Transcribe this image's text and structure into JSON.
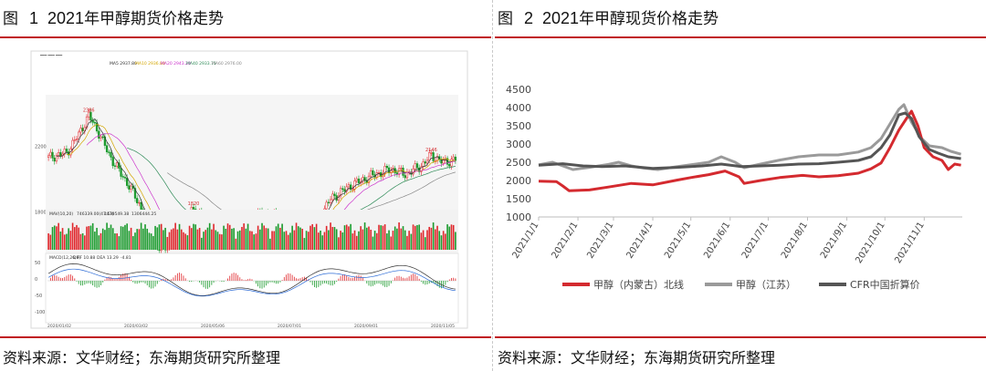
{
  "figure1": {
    "label": "图",
    "number": "1",
    "year": "2021",
    "title": "年甲醇期货价格走势",
    "source": "资料来源：文华财经；东海期货研究所整理",
    "chart_data": {
      "type": "candlestick",
      "header_ma": [
        "MA5 2937.80",
        "MA10 2936.80",
        "MA20 2943.20",
        "MA40 2933.75",
        "MA60 2976.00"
      ],
      "price_annotations": [
        "2386",
        "1931",
        "1820",
        "1671",
        "2146"
      ],
      "y_ticks": [
        "2200",
        "1800"
      ],
      "volume_header": [
        "MAV(10,20)",
        "746339.00(47:53)",
        "1470549.38",
        "1306444.25"
      ],
      "macd_header": [
        "MACD(12,26,9)",
        "DIFF 10.88",
        "DEA 13.29",
        "-4.81"
      ],
      "macd_ticks": [
        "50",
        "0",
        "-50",
        "-100"
      ],
      "x_ticks": [
        "2020/01/02",
        "2020/03/02",
        "2020/05/06",
        "2020/07/01",
        "2020/09/01",
        "2020/11/05"
      ]
    }
  },
  "figure2": {
    "label": "图",
    "number": "2",
    "year": "2021",
    "title": "年甲醇现货价格走势",
    "source": "资料来源：文华财经；东海期货研究所整理",
    "chart_data": {
      "type": "line",
      "ylim": [
        1000,
        4500
      ],
      "y_ticks": [
        1000,
        1500,
        2000,
        2500,
        3000,
        3500,
        4000,
        4500
      ],
      "x_ticks": [
        "2021/1/1",
        "2021/2/1",
        "2021/3/1",
        "2021/4/1",
        "2021/5/1",
        "2021/6/1",
        "2021/7/1",
        "2021/8/1",
        "2021/9/1",
        "2021/10/1",
        "2021/11/1"
      ],
      "grid": false,
      "legend_position": "bottom",
      "series": [
        {
          "name": "甲醇（内蒙古）北线",
          "color": "#d42a2f",
          "points": [
            [
              "2021/1/1",
              1980
            ],
            [
              "2021/1/15",
              1970
            ],
            [
              "2021/1/20",
              1850
            ],
            [
              "2021/1/25",
              1720
            ],
            [
              "2021/2/10",
              1740
            ],
            [
              "2021/2/25",
              1820
            ],
            [
              "2021/3/15",
              1920
            ],
            [
              "2021/4/1",
              1880
            ],
            [
              "2021/4/20",
              2010
            ],
            [
              "2021/5/1",
              2080
            ],
            [
              "2021/5/15",
              2160
            ],
            [
              "2021/5/28",
              2260
            ],
            [
              "2021/6/8",
              2100
            ],
            [
              "2021/6/12",
              1920
            ],
            [
              "2021/6/25",
              2000
            ],
            [
              "2021/7/10",
              2080
            ],
            [
              "2021/7/28",
              2140
            ],
            [
              "2021/8/10",
              2100
            ],
            [
              "2021/8/25",
              2130
            ],
            [
              "2021/9/10",
              2200
            ],
            [
              "2021/9/20",
              2320
            ],
            [
              "2021/9/28",
              2480
            ],
            [
              "2021/10/5",
              2900
            ],
            [
              "2021/10/12",
              3380
            ],
            [
              "2021/10/18",
              3700
            ],
            [
              "2021/10/22",
              3900
            ],
            [
              "2021/10/27",
              3500
            ],
            [
              "2021/11/1",
              2900
            ],
            [
              "2021/11/8",
              2650
            ],
            [
              "2021/11/15",
              2550
            ],
            [
              "2021/11/20",
              2300
            ],
            [
              "2021/11/25",
              2450
            ],
            [
              "2021/11/30",
              2420
            ]
          ]
        },
        {
          "name": "甲醇（江苏）",
          "color": "#9a9a9a",
          "points": [
            [
              "2021/1/1",
              2430
            ],
            [
              "2021/1/12",
              2500
            ],
            [
              "2021/1/20",
              2400
            ],
            [
              "2021/1/28",
              2300
            ],
            [
              "2021/2/10",
              2360
            ],
            [
              "2021/2/25",
              2440
            ],
            [
              "2021/3/5",
              2500
            ],
            [
              "2021/3/15",
              2400
            ],
            [
              "2021/3/25",
              2340
            ],
            [
              "2021/4/5",
              2300
            ],
            [
              "2021/4/20",
              2380
            ],
            [
              "2021/5/5",
              2450
            ],
            [
              "2021/5/15",
              2500
            ],
            [
              "2021/5/25",
              2650
            ],
            [
              "2021/6/5",
              2500
            ],
            [
              "2021/6/12",
              2350
            ],
            [
              "2021/6/25",
              2450
            ],
            [
              "2021/7/10",
              2560
            ],
            [
              "2021/7/25",
              2650
            ],
            [
              "2021/8/10",
              2700
            ],
            [
              "2021/8/25",
              2700
            ],
            [
              "2021/9/10",
              2780
            ],
            [
              "2021/9/20",
              2900
            ],
            [
              "2021/9/28",
              3150
            ],
            [
              "2021/10/5",
              3550
            ],
            [
              "2021/10/12",
              3950
            ],
            [
              "2021/10/16",
              4080
            ],
            [
              "2021/10/22",
              3600
            ],
            [
              "2021/10/30",
              3150
            ],
            [
              "2021/11/5",
              2950
            ],
            [
              "2021/11/15",
              2900
            ],
            [
              "2021/11/22",
              2800
            ],
            [
              "2021/11/30",
              2720
            ]
          ]
        },
        {
          "name": "CFR中国折算价",
          "color": "#555555",
          "points": [
            [
              "2021/1/1",
              2420
            ],
            [
              "2021/1/20",
              2460
            ],
            [
              "2021/2/5",
              2400
            ],
            [
              "2021/2/20",
              2380
            ],
            [
              "2021/3/10",
              2400
            ],
            [
              "2021/4/1",
              2330
            ],
            [
              "2021/4/20",
              2360
            ],
            [
              "2021/5/10",
              2400
            ],
            [
              "2021/5/25",
              2450
            ],
            [
              "2021/6/10",
              2380
            ],
            [
              "2021/6/25",
              2400
            ],
            [
              "2021/7/10",
              2420
            ],
            [
              "2021/7/25",
              2450
            ],
            [
              "2021/8/10",
              2460
            ],
            [
              "2021/8/25",
              2500
            ],
            [
              "2021/9/10",
              2550
            ],
            [
              "2021/9/20",
              2650
            ],
            [
              "2021/9/28",
              2900
            ],
            [
              "2021/10/5",
              3250
            ],
            [
              "2021/10/12",
              3800
            ],
            [
              "2021/10/17",
              3850
            ],
            [
              "2021/10/22",
              3700
            ],
            [
              "2021/10/28",
              3200
            ],
            [
              "2021/11/5",
              2850
            ],
            [
              "2021/11/12",
              2750
            ],
            [
              "2021/11/20",
              2650
            ],
            [
              "2021/11/30",
              2600
            ]
          ]
        }
      ]
    }
  }
}
